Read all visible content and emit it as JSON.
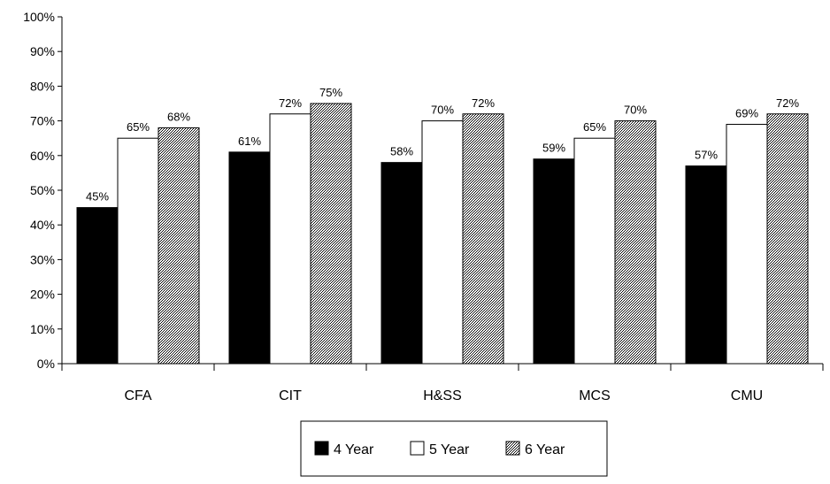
{
  "chart_data": {
    "type": "bar",
    "categories": [
      "CFA",
      "CIT",
      "H&SS",
      "MCS",
      "CMU"
    ],
    "series": [
      {
        "name": "4 Year",
        "values": [
          45,
          61,
          58,
          59,
          57
        ],
        "labels": [
          "45%",
          "61%",
          "58%",
          "59%",
          "57%"
        ],
        "color": "#000000"
      },
      {
        "name": "5 Year",
        "values": [
          65,
          72,
          70,
          65,
          69
        ],
        "labels": [
          "65%",
          "72%",
          "70%",
          "65%",
          "69%"
        ],
        "color": "#ffffff"
      },
      {
        "name": "6 Year",
        "values": [
          68,
          75,
          72,
          70,
          72
        ],
        "labels": [
          "68%",
          "75%",
          "72%",
          "70%",
          "72%"
        ],
        "color": "#808080",
        "pattern": "dotted-gray"
      }
    ],
    "y_ticks": [
      "0%",
      "10%",
      "20%",
      "30%",
      "40%",
      "50%",
      "60%",
      "70%",
      "80%",
      "90%",
      "100%"
    ],
    "ylim": [
      0,
      100
    ],
    "grid": false,
    "legend": "bottom-center"
  }
}
